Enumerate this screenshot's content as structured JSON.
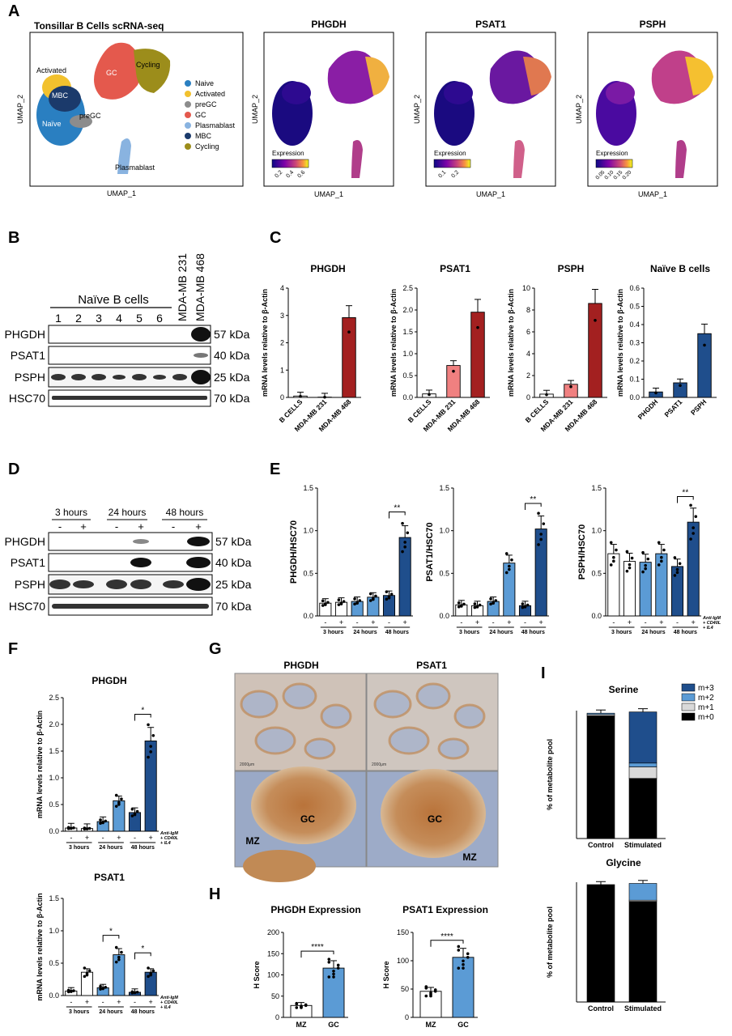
{
  "panels": {
    "A": "A",
    "B": "B",
    "C": "C",
    "D": "D",
    "E": "E",
    "F": "F",
    "G": "G",
    "H": "H",
    "I": "I"
  },
  "colors": {
    "naive": "#2a7fc1",
    "activated": "#f2c12e",
    "pregc": "#8c8c8c",
    "gc": "#e4594d",
    "plasmablast": "#89b3e0",
    "mbc": "#1b3a6b",
    "cycling": "#9c8d1b",
    "bar_white": "#ffffff",
    "bar_light": "#5b9bd5",
    "bar_dark": "#1f4e8c",
    "bar_pink": "#f08080",
    "bar_darkred": "#a32020",
    "m3": "#1f4e8c",
    "m2": "#5b9bd5",
    "m1": "#d9d9d9",
    "m0": "#000000"
  },
  "panel_a": {
    "title": "Tonsillar B Cells scRNA-seq",
    "xlabel": "UMAP_1",
    "ylabel": "UMAP_2",
    "cluster_labels": [
      "Activated",
      "MBC",
      "preGC",
      "Naïve",
      "GC",
      "Cycling",
      "Plasmablast"
    ],
    "legend": [
      "Naive",
      "Activated",
      "preGC",
      "GC",
      "Plasmablast",
      "MBC",
      "Cycling"
    ],
    "feature_plots": [
      {
        "title": "PHGDH",
        "legend_title": "Expression",
        "ticks": [
          "0.2",
          "0.4",
          "0.6"
        ]
      },
      {
        "title": "PSAT1",
        "legend_title": "Expression",
        "ticks": [
          "0.1",
          "0.2"
        ]
      },
      {
        "title": "PSPH",
        "legend_title": "Expression",
        "ticks": [
          "0.05",
          "0.10",
          "0.15",
          "0.20"
        ]
      }
    ]
  },
  "panel_b": {
    "group_label": "Naïve B cells",
    "lanes": [
      "1",
      "2",
      "3",
      "4",
      "5",
      "6"
    ],
    "cell_lines": [
      "MDA-MB 231",
      "MDA-MB 468"
    ],
    "rows": [
      {
        "protein": "PHGDH",
        "kda": "57 kDa"
      },
      {
        "protein": "PSAT1",
        "kda": "40 kDa"
      },
      {
        "protein": "PSPH",
        "kda": "25 kDa"
      },
      {
        "protein": "HSC70",
        "kda": "70 kDa"
      }
    ]
  },
  "panel_d": {
    "timepoints": [
      "3 hours",
      "24 hours",
      "48 hours"
    ],
    "signs": [
      "-",
      "+",
      "-",
      "+",
      "-",
      "+"
    ],
    "rows": [
      {
        "protein": "PHGDH",
        "kda": "57 kDa"
      },
      {
        "protein": "PSAT1",
        "kda": "40 kDa"
      },
      {
        "protein": "PSPH",
        "kda": "25 kDa"
      },
      {
        "protein": "HSC70",
        "kda": "70 kDa"
      }
    ]
  },
  "panel_g": {
    "titles": [
      "PHGDH",
      "PSAT1"
    ],
    "labels": [
      "GC",
      "MZ",
      "GC",
      "MZ"
    ],
    "scale_bar": "2000μm"
  },
  "chart_data": [
    {
      "id": "C1",
      "type": "bar",
      "title": "PHGDH",
      "ylabel": "mRNA levels relative to β-Actin",
      "ylim": [
        0,
        4
      ],
      "yticks": [
        0,
        1,
        2,
        3,
        4
      ],
      "categories": [
        "B CELLS",
        "MDA-MB 231",
        "MDA-MB 468"
      ],
      "values": [
        0.05,
        0.01,
        2.92
      ]
    },
    {
      "id": "C2",
      "type": "bar",
      "title": "PSAT1",
      "ylabel": "mRNA levels relative to β-Actin",
      "ylim": [
        0,
        2.5
      ],
      "yticks": [
        0,
        0.5,
        1.0,
        1.5,
        2.0,
        2.5
      ],
      "categories": [
        "B CELLS",
        "MDA-MB 231",
        "MDA-MB 468"
      ],
      "values": [
        0.08,
        0.73,
        1.95
      ]
    },
    {
      "id": "C3",
      "type": "bar",
      "title": "PSPH",
      "ylabel": "mRNA levels relative to β-Actin",
      "ylim": [
        0,
        10
      ],
      "yticks": [
        0,
        2,
        4,
        6,
        8,
        10
      ],
      "categories": [
        "B CELLS",
        "MDA-MB 231",
        "MDA-MB 468"
      ],
      "values": [
        0.3,
        1.2,
        8.6
      ]
    },
    {
      "id": "C4",
      "type": "bar",
      "title": "Naïve B cells",
      "ylabel": "mRNA levels relative to β-Actin",
      "ylim": [
        0,
        0.6
      ],
      "yticks": [
        0,
        0.1,
        0.2,
        0.3,
        0.4,
        0.5,
        0.6
      ],
      "categories": [
        "PHGDH",
        "PSAT1",
        "PSPH"
      ],
      "values": [
        0.03,
        0.08,
        0.35
      ]
    },
    {
      "id": "E1",
      "type": "bar",
      "ylabel": "PHGDH/HSC70",
      "ylim": [
        0,
        1.5
      ],
      "yticks": [
        0,
        0.5,
        1.0,
        1.5
      ],
      "categories": [
        "3 hours -",
        "3 hours +",
        "24 hours -",
        "24 hours +",
        "48 hours -",
        "48 hours +"
      ],
      "values": [
        0.15,
        0.16,
        0.17,
        0.22,
        0.24,
        0.92
      ],
      "significance": "**"
    },
    {
      "id": "E2",
      "type": "bar",
      "ylabel": "PSAT1/HSC70",
      "ylim": [
        0,
        1.5
      ],
      "yticks": [
        0,
        0.5,
        1.0,
        1.5
      ],
      "categories": [
        "3 hours -",
        "3 hours +",
        "24 hours -",
        "24 hours +",
        "48 hours -",
        "48 hours +"
      ],
      "values": [
        0.13,
        0.12,
        0.17,
        0.62,
        0.12,
        1.02
      ],
      "significance": "**"
    },
    {
      "id": "E3",
      "type": "bar",
      "ylabel": "PSPH/HSC70",
      "ylim": [
        0,
        1.5
      ],
      "yticks": [
        0,
        0.5,
        1.0,
        1.5
      ],
      "categories": [
        "3 hours -",
        "3 hours +",
        "24 hours -",
        "24 hours +",
        "48 hours -",
        "48 hours +"
      ],
      "values": [
        0.73,
        0.64,
        0.63,
        0.73,
        0.58,
        1.1
      ],
      "significance": "**"
    },
    {
      "id": "F1",
      "type": "bar",
      "title": "PHGDH",
      "ylabel": "mRNA levels relative to β-Actin",
      "ylim": [
        0,
        2.5
      ],
      "yticks": [
        0,
        0.5,
        1.0,
        1.5,
        2.0,
        2.5
      ],
      "categories": [
        "3 hours -",
        "3 hours +",
        "24 hours -",
        "24 hours +",
        "48 hours -",
        "48 hours +"
      ],
      "values": [
        0.06,
        0.05,
        0.18,
        0.57,
        0.35,
        1.69
      ],
      "significance": "*"
    },
    {
      "id": "F2",
      "type": "bar",
      "title": "PSAT1",
      "ylabel": "mRNA levels relative to β-Actin",
      "ylim": [
        0,
        1.5
      ],
      "yticks": [
        0,
        0.5,
        1.0,
        1.5
      ],
      "categories": [
        "3 hours -",
        "3 hours +",
        "24 hours -",
        "24 hours +",
        "48 hours -",
        "48 hours +"
      ],
      "values": [
        0.07,
        0.36,
        0.12,
        0.63,
        0.05,
        0.36
      ],
      "significance": [
        "*",
        "*"
      ]
    },
    {
      "id": "H1",
      "type": "bar",
      "title": "PHGDH Expression",
      "ylabel": "H Score",
      "ylim": [
        0,
        200
      ],
      "yticks": [
        0,
        50,
        100,
        150,
        200
      ],
      "categories": [
        "MZ",
        "GC"
      ],
      "values": [
        28,
        116
      ],
      "significance": "****"
    },
    {
      "id": "H2",
      "type": "bar",
      "title": "PSAT1 Expression",
      "ylabel": "H Score",
      "ylim": [
        0,
        150
      ],
      "yticks": [
        0,
        50,
        100,
        150
      ],
      "categories": [
        "MZ",
        "GC"
      ],
      "values": [
        46,
        106
      ],
      "significance": "****"
    },
    {
      "id": "I1",
      "type": "stacked_bar",
      "title": "Serine",
      "ylabel": "% of metabolite pool",
      "ylim": [
        0,
        100
      ],
      "categories": [
        "Control",
        "Stimulated"
      ],
      "series": [
        {
          "name": "m+0",
          "values": [
            96,
            47
          ]
        },
        {
          "name": "m+1",
          "values": [
            1,
            9
          ]
        },
        {
          "name": "m+2",
          "values": [
            1,
            3
          ]
        },
        {
          "name": "m+3",
          "values": [
            0,
            40
          ]
        }
      ]
    },
    {
      "id": "I2",
      "type": "stacked_bar",
      "title": "Glycine",
      "ylabel": "% of metabolite pool",
      "ylim": [
        0,
        100
      ],
      "categories": [
        "Control",
        "Stimulated"
      ],
      "series": [
        {
          "name": "m+0",
          "values": [
            98,
            84
          ]
        },
        {
          "name": "m+1",
          "values": [
            0,
            1
          ]
        },
        {
          "name": "m+2",
          "values": [
            0,
            14
          ]
        },
        {
          "name": "m+3",
          "values": [
            0,
            0
          ]
        }
      ]
    }
  ],
  "legend_i": [
    "m+3",
    "m+2",
    "m+1",
    "m+0"
  ],
  "treatment_note": "Anti-IgM + CD40L + IL4",
  "time_labels": [
    "3 hours",
    "24 hours",
    "48 hours"
  ]
}
